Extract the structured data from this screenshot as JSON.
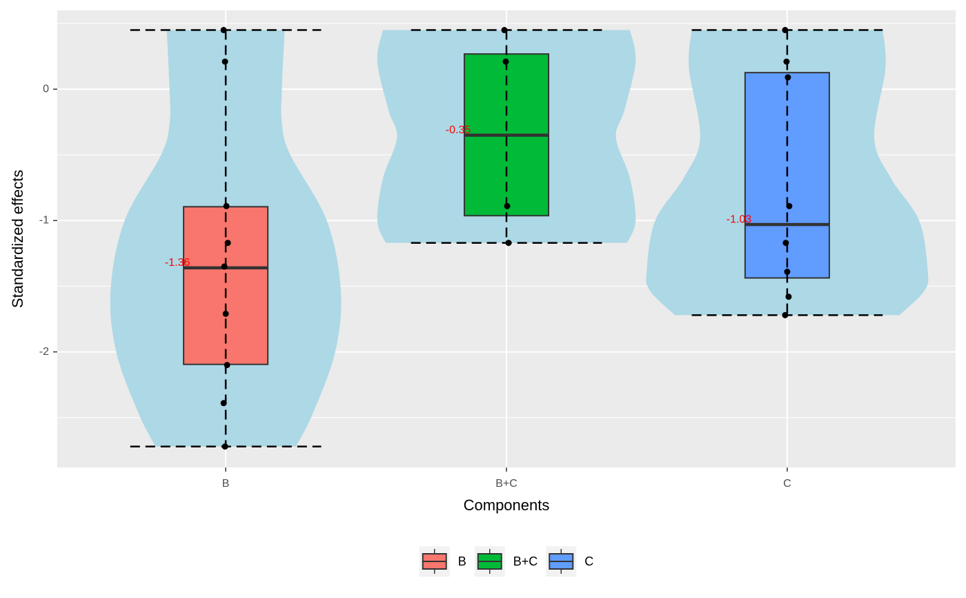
{
  "chart_data": {
    "type": "violin-box",
    "xlabel": "Components",
    "ylabel": "Standardized effects",
    "categories": [
      "B",
      "B+C",
      "C"
    ],
    "ylim": [
      -2.88,
      0.6
    ],
    "yticks": [
      -2,
      -1,
      0
    ],
    "yminor": [
      -2.5,
      -1.5,
      -0.5,
      0.5
    ],
    "grid": true,
    "legend_position": "bottom",
    "violin_color": "#ADD8E6",
    "label_color": "#FF0000",
    "series": [
      {
        "name": "B",
        "color": "#F8766D",
        "box": {
          "lower": -2.72,
          "q1": -2.095,
          "median": -1.36,
          "q3": -0.895,
          "upper": 0.45
        },
        "points": [
          0.45,
          0.21,
          -0.89,
          -1.17,
          -1.35,
          -1.71,
          -2.1,
          -2.39,
          -2.72
        ],
        "violin": {
          "y": [
            0.45,
            0,
            -0.26,
            -0.5,
            -1,
            -1.53,
            -2,
            -2.47,
            -2.72
          ],
          "halfwidth": [
            0.21,
            0.2,
            0.2,
            0.23,
            0.36,
            0.41,
            0.39,
            0.31,
            0.25
          ]
        }
      },
      {
        "name": "B+C",
        "color": "#00BA38",
        "box": {
          "lower": -1.17,
          "q1": -0.963,
          "median": -0.35,
          "q3": 0.268,
          "upper": 0.45
        },
        "points": [
          0.45,
          0.21,
          -0.89,
          -1.17
        ],
        "violin": {
          "y": [
            0.45,
            0.21,
            -0.16,
            -0.37,
            -0.68,
            -1,
            -1.17
          ],
          "halfwidth": [
            0.44,
            0.46,
            0.42,
            0.39,
            0.44,
            0.46,
            0.43
          ]
        }
      },
      {
        "name": "C",
        "color": "#619CFF",
        "box": {
          "lower": -1.72,
          "q1": -1.437,
          "median": -1.03,
          "q3": 0.126,
          "upper": 0.45
        },
        "points": [
          0.45,
          0.21,
          0.09,
          -0.89,
          -1.17,
          -1.39,
          -1.58,
          -1.72
        ],
        "violin": {
          "y": [
            0.45,
            0.16,
            -0.37,
            -0.68,
            -1,
            -1.37,
            -1.53,
            -1.72
          ],
          "halfwidth": [
            0.34,
            0.35,
            0.31,
            0.37,
            0.47,
            0.5,
            0.49,
            0.4
          ]
        }
      }
    ]
  }
}
